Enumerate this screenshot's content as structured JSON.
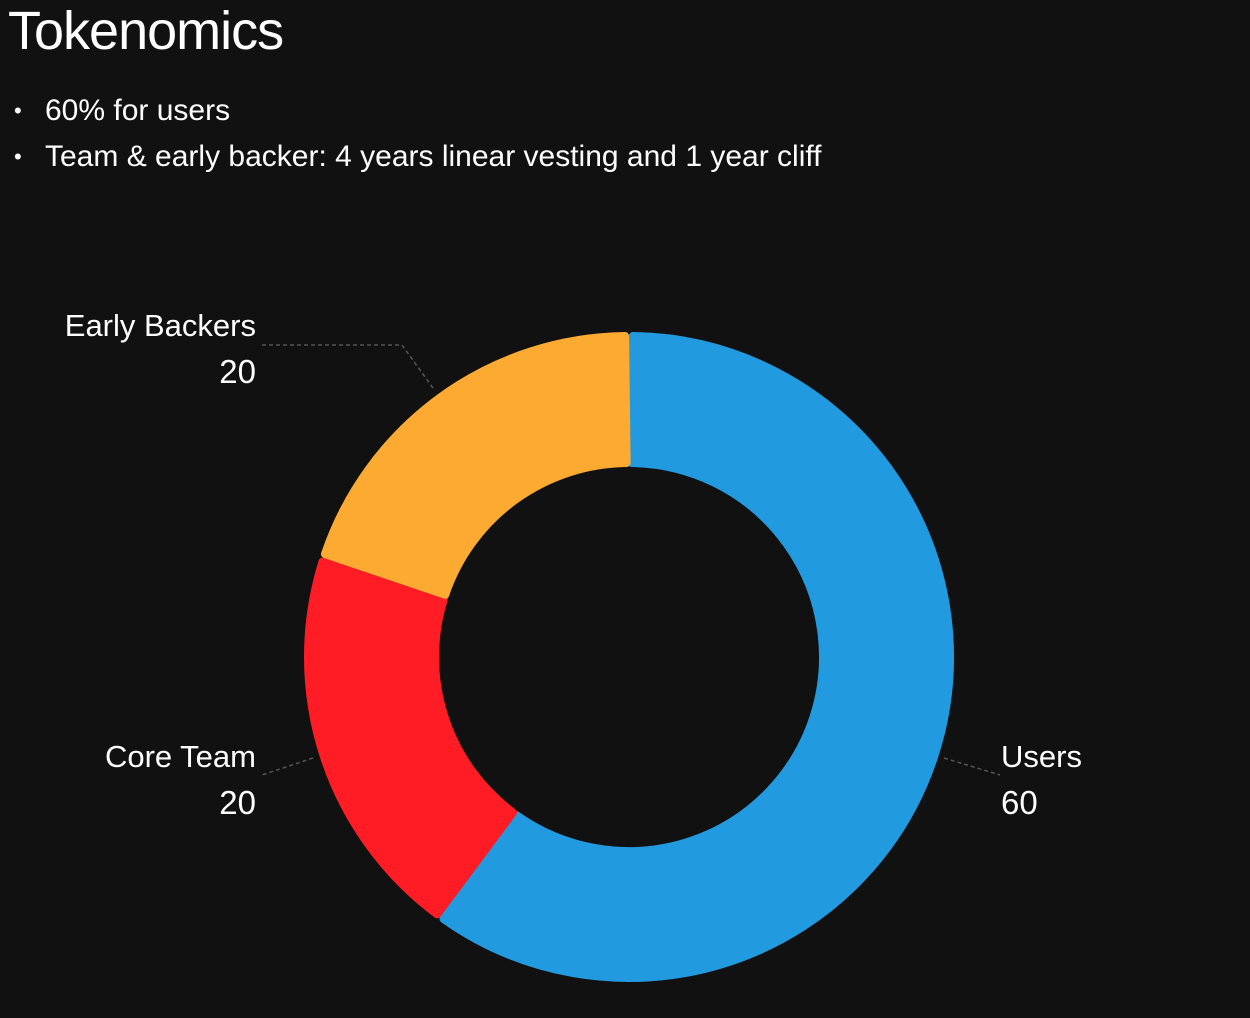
{
  "title": "Tokenomics",
  "bullets": [
    "60% for users",
    "Team & early backer: 4 years linear vesting and 1 year cliff"
  ],
  "chart_data": {
    "type": "pie",
    "variant": "donut",
    "title": "",
    "legend": "none",
    "slices": [
      {
        "label": "Users",
        "value": 60,
        "color": "#229ADF"
      },
      {
        "label": "Core Team",
        "value": 20,
        "color": "#FF1C24"
      },
      {
        "label": "Early Backers",
        "value": 20,
        "color": "#FDAA33"
      }
    ]
  }
}
